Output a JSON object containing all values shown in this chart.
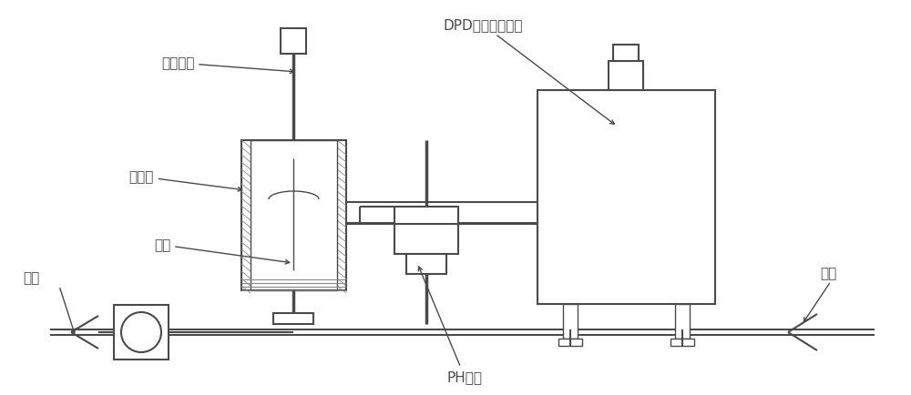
{
  "bg_color": "#ffffff",
  "line_color": "#4a4a4a",
  "figsize": [
    10.0,
    4.35
  ],
  "dpi": 100,
  "labels": {
    "dpd": "DPD比色双检测器",
    "electrode": "余氯电极",
    "flow_cell": "流通池",
    "sample": "样品",
    "inlet": "进样",
    "outlet": "出样",
    "ph": "PH电极"
  },
  "font_size": 11
}
